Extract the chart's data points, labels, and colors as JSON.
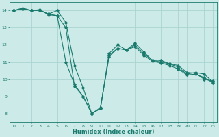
{
  "xlabel": "Humidex (Indice chaleur)",
  "bg_color": "#cceae7",
  "grid_color": "#aad4d0",
  "line_color": "#1a7a6e",
  "xlim": [
    -0.5,
    23.5
  ],
  "ylim": [
    7.5,
    14.5
  ],
  "yticks": [
    8,
    9,
    10,
    11,
    12,
    13,
    14
  ],
  "xticks": [
    0,
    1,
    2,
    3,
    4,
    5,
    6,
    7,
    8,
    9,
    10,
    11,
    12,
    13,
    14,
    15,
    16,
    17,
    18,
    19,
    20,
    21,
    22,
    23
  ],
  "series1_x": [
    0,
    1,
    2,
    3,
    4,
    5,
    6,
    7,
    8,
    9,
    10,
    11,
    12,
    13,
    14,
    15,
    16,
    17,
    18,
    19,
    20,
    21,
    22,
    23
  ],
  "series1_y": [
    14.0,
    14.1,
    14.0,
    14.0,
    13.8,
    14.0,
    13.3,
    10.8,
    9.5,
    8.0,
    8.35,
    11.3,
    11.8,
    11.7,
    12.1,
    11.6,
    11.1,
    11.0,
    10.9,
    10.7,
    10.3,
    10.4,
    10.3,
    9.85
  ],
  "series2_x": [
    0,
    1,
    2,
    3,
    4,
    5,
    6,
    7,
    8,
    9,
    10,
    11,
    12,
    13,
    14,
    15,
    16,
    17,
    18,
    19,
    20,
    21,
    22,
    23
  ],
  "series2_y": [
    14.0,
    14.15,
    14.0,
    14.05,
    13.75,
    13.7,
    11.0,
    9.7,
    9.0,
    8.0,
    8.3,
    11.5,
    12.0,
    11.7,
    12.0,
    11.5,
    11.1,
    11.1,
    10.9,
    10.8,
    10.4,
    10.35,
    10.0,
    9.9
  ],
  "series3_x": [
    0,
    1,
    2,
    3,
    4,
    5,
    6,
    7,
    8,
    9,
    10,
    11,
    12,
    13,
    14,
    15,
    16,
    17,
    18,
    19,
    20,
    21,
    22,
    23
  ],
  "series3_y": [
    14.0,
    14.1,
    14.0,
    14.0,
    13.8,
    13.7,
    13.0,
    9.6,
    9.0,
    8.0,
    8.3,
    11.4,
    11.8,
    11.7,
    11.9,
    11.4,
    11.05,
    10.95,
    10.8,
    10.6,
    10.25,
    10.3,
    10.1,
    9.8
  ],
  "xlabel_fontsize": 6,
  "tick_fontsize": 4.5,
  "marker_size": 1.8,
  "line_width": 0.8
}
